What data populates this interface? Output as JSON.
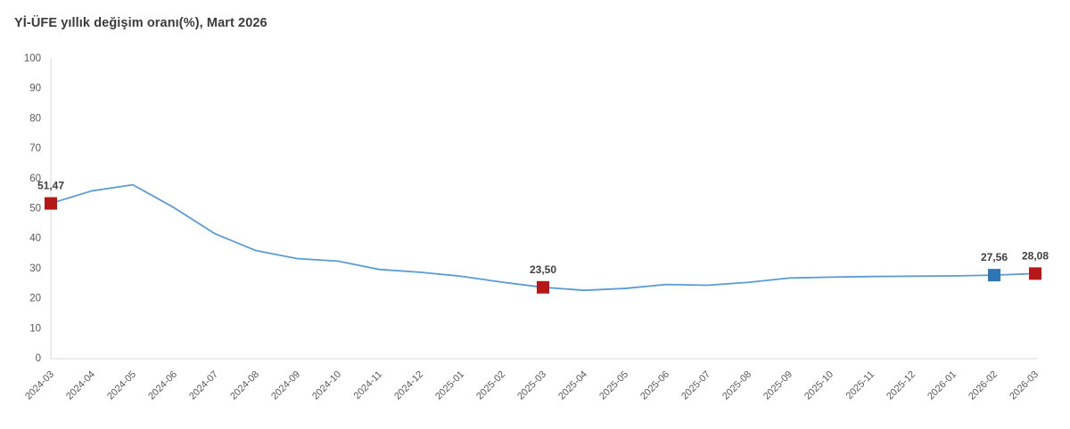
{
  "chart_data": {
    "type": "line",
    "title": "Yİ-ÜFE yıllık değişim oranı(%), Mart 2026",
    "xlabel": "",
    "ylabel": "",
    "ylim": [
      0,
      100
    ],
    "y_ticks": [
      0,
      10,
      20,
      30,
      40,
      50,
      60,
      70,
      80,
      90,
      100
    ],
    "grid": "off",
    "legend": "none",
    "categories": [
      "2024-03",
      "2024-04",
      "2024-05",
      "2024-06",
      "2024-07",
      "2024-08",
      "2024-09",
      "2024-10",
      "2024-11",
      "2024-12",
      "2025-01",
      "2025-02",
      "2025-03",
      "2025-04",
      "2025-05",
      "2025-06",
      "2025-07",
      "2025-08",
      "2025-09",
      "2025-10",
      "2025-11",
      "2025-12",
      "2026-01",
      "2026-02",
      "2026-03"
    ],
    "series": [
      {
        "name": "Yİ-ÜFE yıllık değişim oranı (%)",
        "values": [
          51.47,
          55.66,
          57.68,
          50.09,
          41.37,
          35.75,
          33.09,
          32.24,
          29.47,
          28.52,
          27.2,
          25.21,
          23.5,
          22.5,
          23.13,
          24.45,
          24.19,
          25.16,
          26.59,
          26.9,
          27.1,
          27.2,
          27.3,
          27.56,
          28.08
        ]
      }
    ],
    "highlighted_points": [
      {
        "category": "2024-03",
        "index": 0,
        "value": 51.47,
        "label": "51,47",
        "color": "#b41918"
      },
      {
        "category": "2025-03",
        "index": 12,
        "value": 23.5,
        "label": "23,50",
        "color": "#b41918"
      },
      {
        "category": "2026-02",
        "index": 23,
        "value": 27.56,
        "label": "27,56",
        "color": "#2e75b6"
      },
      {
        "category": "2026-03",
        "index": 24,
        "value": 28.08,
        "label": "28,08",
        "color": "#b41918"
      }
    ],
    "colors": {
      "line": "#5b9bd5",
      "axis": "#d9d9d9",
      "tick_label": "#595959",
      "value_label": "#404040"
    }
  }
}
